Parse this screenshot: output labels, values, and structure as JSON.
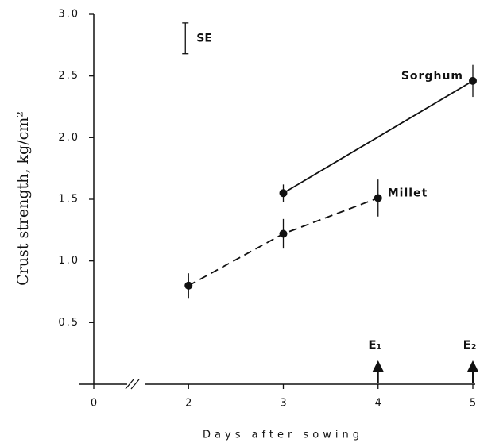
{
  "chart_data": {
    "type": "line",
    "ylabel": "Crust strength, kg/cm²",
    "xlabel": "Days after sowing",
    "xlim": [
      0,
      5
    ],
    "xticks": [
      0,
      2,
      3,
      4,
      5
    ],
    "ylim": [
      0,
      3
    ],
    "yticks": [
      {
        "value": 0.5,
        "label": "0.5"
      },
      {
        "value": 1,
        "label": "1.0"
      },
      {
        "value": 1.5,
        "label": "1.5"
      },
      {
        "value": 2,
        "label": "2.0"
      },
      {
        "value": 2.5,
        "label": "2.5"
      },
      {
        "value": 3,
        "label": "3.0"
      }
    ],
    "series": [
      {
        "name": "Sorghum",
        "color": "#111111",
        "dash": false,
        "x": [
          3,
          5
        ],
        "values": [
          1.55,
          2.46
        ],
        "errors": [
          0.07,
          0.13
        ]
      },
      {
        "name": "Millet",
        "color": "#111111",
        "dash": true,
        "x": [
          2,
          3,
          4
        ],
        "values": [
          0.8,
          1.22,
          1.51
        ],
        "errors": [
          0.1,
          0.12,
          0.15
        ]
      }
    ],
    "se": {
      "label": "SE",
      "x": 2,
      "y": 2.805,
      "error": 0.125
    },
    "annotations": [
      {
        "text": "E₁",
        "x": 4
      },
      {
        "text": "E₂",
        "x": 5
      }
    ]
  }
}
